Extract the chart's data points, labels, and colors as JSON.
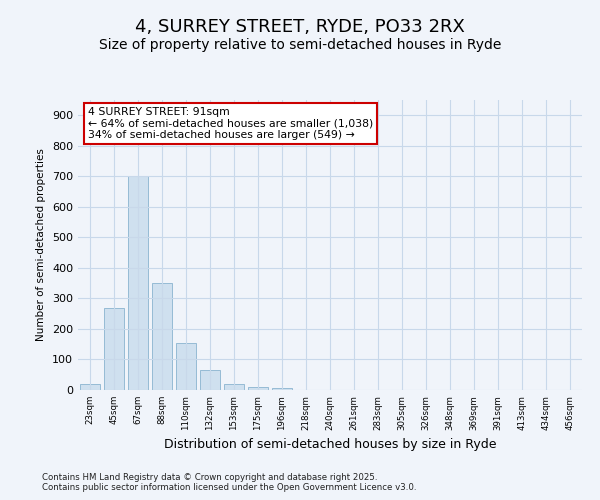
{
  "title": "4, SURREY STREET, RYDE, PO33 2RX",
  "subtitle": "Size of property relative to semi-detached houses in Ryde",
  "xlabel": "Distribution of semi-detached houses by size in Ryde",
  "ylabel": "Number of semi-detached properties",
  "bar_values": [
    20,
    270,
    700,
    350,
    155,
    65,
    20,
    10,
    8,
    0,
    0,
    0,
    0,
    0,
    0,
    0,
    0,
    0,
    0,
    0,
    0
  ],
  "bar_labels": [
    "23sqm",
    "45sqm",
    "67sqm",
    "88sqm",
    "110sqm",
    "132sqm",
    "153sqm",
    "175sqm",
    "196sqm",
    "218sqm",
    "240sqm",
    "261sqm",
    "283sqm",
    "305sqm",
    "326sqm",
    "348sqm",
    "369sqm",
    "391sqm",
    "413sqm",
    "434sqm",
    "456sqm"
  ],
  "bar_color": "#cfe0ef",
  "bar_edge_color": "#8ab4d0",
  "annotation_title": "4 SURREY STREET: 91sqm",
  "annotation_line1": "← 64% of semi-detached houses are smaller (1,038)",
  "annotation_line2": "34% of semi-detached houses are larger (549) →",
  "annotation_box_color": "#cc0000",
  "ylim": [
    0,
    950
  ],
  "yticks": [
    0,
    100,
    200,
    300,
    400,
    500,
    600,
    700,
    800,
    900
  ],
  "footnote1": "Contains HM Land Registry data © Crown copyright and database right 2025.",
  "footnote2": "Contains public sector information licensed under the Open Government Licence v3.0.",
  "bg_color": "#f0f4fa",
  "grid_color": "#c8d8ea",
  "title_fontsize": 13,
  "subtitle_fontsize": 10
}
